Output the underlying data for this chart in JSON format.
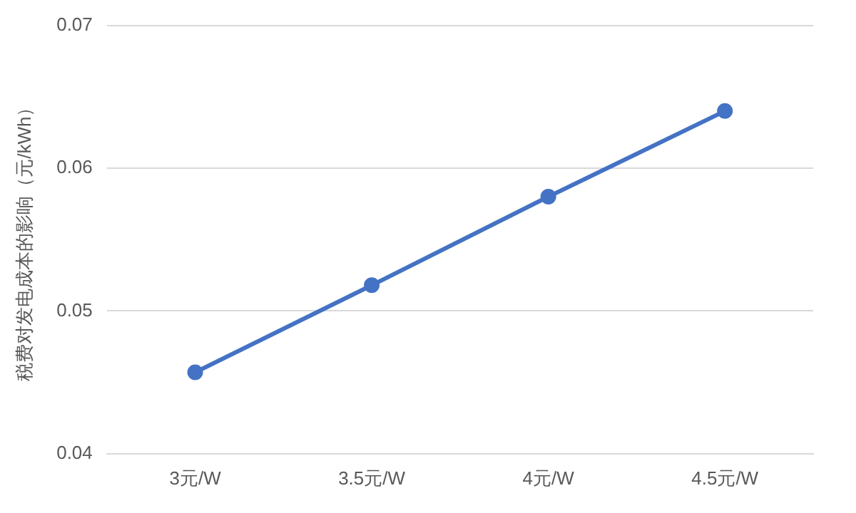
{
  "chart_data": {
    "type": "line",
    "ylabel": "税费对发电成本的影响（元/kWh）",
    "categories": [
      "3元/W",
      "3.5元/W",
      "4元/W",
      "4.5元/W"
    ],
    "series": [
      {
        "color": "#4472c4",
        "values": [
          0.0457,
          0.0518,
          0.058,
          0.064
        ]
      }
    ],
    "ylim": [
      0.04,
      0.07
    ],
    "yticks": [
      0.04,
      0.05,
      0.06,
      0.07
    ],
    "grid": "y",
    "legend": false,
    "marker": "circle",
    "line_style": "solid"
  }
}
